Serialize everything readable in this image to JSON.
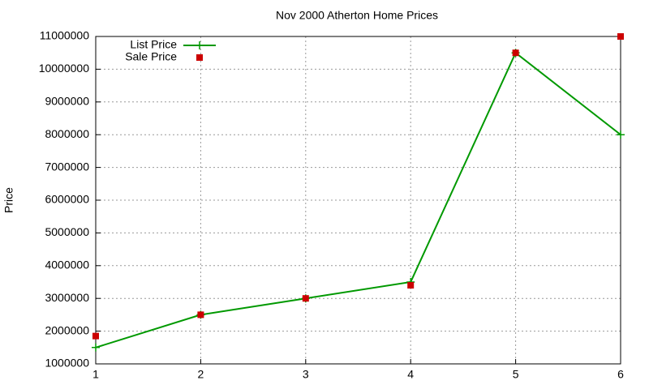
{
  "chart_data": {
    "type": "line",
    "title": "Nov 2000 Atherton Home Prices",
    "y_label": "Price",
    "x": [
      1,
      2,
      3,
      4,
      5,
      6
    ],
    "series": [
      {
        "name": "List Price",
        "color": "#009900",
        "style": "linespoints",
        "values": [
          1500000,
          2500000,
          3000000,
          3500000,
          10500000,
          8000000
        ]
      },
      {
        "name": "Sale Price",
        "color": "#cc0000",
        "style": "points",
        "values": [
          1850000,
          2500000,
          3000000,
          3400000,
          10500000,
          11000000
        ]
      }
    ],
    "xlim": [
      1,
      6
    ],
    "xticks": [
      1,
      2,
      3,
      4,
      5,
      6
    ],
    "ylim": [
      1000000,
      11000000
    ],
    "yticks": [
      1000000,
      2000000,
      3000000,
      4000000,
      5000000,
      6000000,
      7000000,
      8000000,
      9000000,
      10000000,
      11000000
    ],
    "grid": true,
    "legend": "top-left"
  }
}
